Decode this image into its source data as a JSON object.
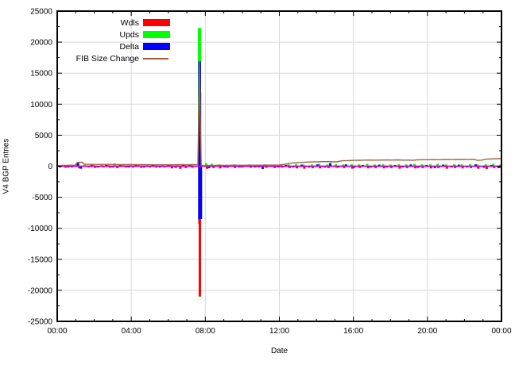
{
  "chart_data": {
    "type": "bar",
    "subtype": "gnuplot-impulses-with-line",
    "title": "",
    "xlabel": "Date",
    "ylabel": "V4 BGP Entries",
    "ylim": [
      -25000,
      25000
    ],
    "y_tick_step": 5000,
    "y_minor_step": 2500,
    "x_range_hours": [
      0,
      24
    ],
    "x_major_step_hours": 4,
    "x_minor_step_hours": 1,
    "x_tick_labels": [
      "00:00",
      "04:00",
      "08:00",
      "12:00",
      "16:00",
      "20:00",
      "00:00"
    ],
    "grid": true,
    "grid_color": "#d8d8d8",
    "border_color": "#000000",
    "background_color": "#ffffff",
    "zero_line": {
      "value": 0,
      "color": "#cc00cc"
    },
    "legend_position": "top-left-inside",
    "legend": [
      {
        "label": "Wdls",
        "color": "#ff0000",
        "swatch": "box"
      },
      {
        "label": "Upds",
        "color": "#00ff00",
        "swatch": "box"
      },
      {
        "label": "Delta",
        "color": "#0000ff",
        "swatch": "box"
      },
      {
        "label": "FIB Size Change",
        "color": "#a5603c",
        "swatch": "line"
      }
    ],
    "series": [
      {
        "name": "Wdls",
        "style": "impulse",
        "color": "#ff0000",
        "points": [
          [
            0.15,
            -150
          ],
          [
            0.45,
            -250
          ],
          [
            0.8,
            -200
          ],
          [
            1.2,
            -350
          ],
          [
            1.7,
            -200
          ],
          [
            2.05,
            -280
          ],
          [
            2.5,
            -200
          ],
          [
            2.85,
            -250
          ],
          [
            3.25,
            -300
          ],
          [
            3.7,
            -200
          ],
          [
            4.1,
            -220
          ],
          [
            4.55,
            -260
          ],
          [
            5.0,
            -200
          ],
          [
            5.35,
            -230
          ],
          [
            5.8,
            -200
          ],
          [
            6.2,
            -350
          ],
          [
            6.65,
            -420
          ],
          [
            6.95,
            -300
          ],
          [
            7.3,
            -250
          ],
          [
            7.67,
            -9300,
            2.5
          ],
          [
            7.705,
            -21000,
            3
          ],
          [
            8.1,
            -420
          ],
          [
            8.45,
            -300
          ],
          [
            8.8,
            -350
          ],
          [
            9.2,
            -250
          ],
          [
            9.6,
            -300
          ],
          [
            10.0,
            -220
          ],
          [
            10.45,
            -250
          ],
          [
            10.9,
            -200
          ],
          [
            11.3,
            -260
          ],
          [
            11.75,
            -300
          ],
          [
            12.15,
            -250
          ],
          [
            12.55,
            -300
          ],
          [
            12.95,
            -350
          ],
          [
            13.35,
            -400
          ],
          [
            13.8,
            -300
          ],
          [
            14.2,
            -350
          ],
          [
            14.65,
            -300
          ],
          [
            15.1,
            -250
          ],
          [
            15.5,
            -300
          ],
          [
            15.95,
            -400
          ],
          [
            16.35,
            -300
          ],
          [
            16.8,
            -350
          ],
          [
            17.2,
            -300
          ],
          [
            17.65,
            -350
          ],
          [
            18.05,
            -300
          ],
          [
            18.5,
            -400
          ],
          [
            18.9,
            -300
          ],
          [
            19.35,
            -350
          ],
          [
            19.75,
            -300
          ],
          [
            20.2,
            -350
          ],
          [
            20.6,
            -300
          ],
          [
            21.05,
            -400
          ],
          [
            21.5,
            -300
          ],
          [
            21.9,
            -350
          ],
          [
            22.35,
            -300
          ],
          [
            22.75,
            -400
          ],
          [
            23.2,
            -450
          ],
          [
            23.6,
            -300
          ],
          [
            23.9,
            -250
          ]
        ]
      },
      {
        "name": "Upds",
        "style": "impulse",
        "color": "#00ff00",
        "points": [
          [
            0.25,
            200
          ],
          [
            0.7,
            250
          ],
          [
            1.05,
            300
          ],
          [
            1.5,
            250
          ],
          [
            1.95,
            200
          ],
          [
            2.4,
            250
          ],
          [
            2.75,
            200
          ],
          [
            3.1,
            450
          ],
          [
            3.55,
            250
          ],
          [
            3.95,
            200
          ],
          [
            4.4,
            250
          ],
          [
            4.85,
            200
          ],
          [
            5.25,
            250
          ],
          [
            5.7,
            300
          ],
          [
            6.1,
            250
          ],
          [
            6.5,
            200
          ],
          [
            6.9,
            250
          ],
          [
            7.25,
            300
          ],
          [
            7.685,
            22300,
            4
          ],
          [
            7.735,
            11900,
            2.5
          ],
          [
            8.05,
            500
          ],
          [
            8.35,
            400
          ],
          [
            8.75,
            300
          ],
          [
            9.15,
            250
          ],
          [
            9.55,
            300
          ],
          [
            9.95,
            250
          ],
          [
            10.4,
            300
          ],
          [
            10.85,
            250
          ],
          [
            11.25,
            300
          ],
          [
            11.7,
            250
          ],
          [
            12.1,
            250
          ],
          [
            12.5,
            300
          ],
          [
            12.9,
            350
          ],
          [
            13.3,
            300
          ],
          [
            13.75,
            300
          ],
          [
            14.15,
            400
          ],
          [
            14.6,
            300
          ],
          [
            15.05,
            350
          ],
          [
            15.45,
            300
          ],
          [
            15.9,
            350
          ],
          [
            16.3,
            300
          ],
          [
            16.75,
            400
          ],
          [
            17.15,
            300
          ],
          [
            17.6,
            350
          ],
          [
            18.0,
            300
          ],
          [
            18.45,
            350
          ],
          [
            18.85,
            300
          ],
          [
            19.3,
            400
          ],
          [
            19.7,
            300
          ],
          [
            20.15,
            350
          ],
          [
            20.55,
            400
          ],
          [
            21.0,
            300
          ],
          [
            21.45,
            350
          ],
          [
            21.85,
            300
          ],
          [
            22.3,
            350
          ],
          [
            22.7,
            300
          ],
          [
            23.15,
            350
          ],
          [
            23.55,
            400
          ],
          [
            23.95,
            300
          ]
        ]
      },
      {
        "name": "Delta",
        "style": "impulse",
        "color": "#0000ff",
        "points": [
          [
            0.35,
            150
          ],
          [
            0.6,
            -150
          ],
          [
            1.12,
            600,
            3
          ],
          [
            1.28,
            -400
          ],
          [
            1.85,
            150
          ],
          [
            2.2,
            -200
          ],
          [
            2.65,
            150
          ],
          [
            3.0,
            -150
          ],
          [
            3.4,
            200
          ],
          [
            3.85,
            -200
          ],
          [
            4.25,
            200
          ],
          [
            4.7,
            -150
          ],
          [
            5.15,
            200
          ],
          [
            5.55,
            -200
          ],
          [
            6.0,
            250
          ],
          [
            6.4,
            -250
          ],
          [
            6.8,
            150
          ],
          [
            7.15,
            200
          ],
          [
            7.695,
            16900,
            3.5
          ],
          [
            7.72,
            -8500,
            5
          ],
          [
            8.2,
            -300
          ],
          [
            8.6,
            200
          ],
          [
            9.05,
            -200
          ],
          [
            9.45,
            250
          ],
          [
            9.85,
            -200
          ],
          [
            10.3,
            200
          ],
          [
            10.7,
            -200
          ],
          [
            11.1,
            -430
          ],
          [
            11.55,
            200
          ],
          [
            11.95,
            -200
          ],
          [
            12.35,
            200
          ],
          [
            12.75,
            -200
          ],
          [
            13.2,
            250
          ],
          [
            13.6,
            -200
          ],
          [
            14.05,
            300
          ],
          [
            14.45,
            -200
          ],
          [
            14.75,
            500
          ],
          [
            15.2,
            -200
          ],
          [
            15.6,
            300
          ],
          [
            16.05,
            -250
          ],
          [
            16.5,
            200
          ],
          [
            16.95,
            -200
          ],
          [
            17.4,
            250
          ],
          [
            17.8,
            -200
          ],
          [
            18.25,
            200
          ],
          [
            18.65,
            -200
          ],
          [
            19.1,
            300
          ],
          [
            19.5,
            -250
          ],
          [
            19.95,
            200
          ],
          [
            20.4,
            -300
          ],
          [
            20.85,
            250
          ],
          [
            21.3,
            -200
          ],
          [
            21.7,
            250
          ],
          [
            22.15,
            -200
          ],
          [
            22.6,
            300
          ],
          [
            23.05,
            -250
          ],
          [
            23.45,
            200
          ],
          [
            23.85,
            -300
          ]
        ]
      },
      {
        "name": "FIB Size Change",
        "style": "line",
        "color": "#a5603c",
        "points": [
          [
            0,
            100
          ],
          [
            0.5,
            130
          ],
          [
            0.95,
            160
          ],
          [
            1.1,
            620
          ],
          [
            1.35,
            640
          ],
          [
            1.45,
            330
          ],
          [
            1.8,
            300
          ],
          [
            2.2,
            290
          ],
          [
            2.6,
            300
          ],
          [
            3.0,
            280
          ],
          [
            3.4,
            270
          ],
          [
            3.8,
            255
          ],
          [
            4.2,
            260
          ],
          [
            4.6,
            250
          ],
          [
            5.0,
            245
          ],
          [
            5.4,
            235
          ],
          [
            5.8,
            240
          ],
          [
            6.2,
            230
          ],
          [
            6.6,
            250
          ],
          [
            7.0,
            240
          ],
          [
            7.3,
            250
          ],
          [
            7.6,
            255
          ],
          [
            7.69,
            16900
          ],
          [
            7.73,
            7900
          ],
          [
            7.78,
            120
          ],
          [
            8.0,
            110
          ],
          [
            8.4,
            130
          ],
          [
            8.8,
            150
          ],
          [
            9.2,
            140
          ],
          [
            9.6,
            160
          ],
          [
            10.0,
            155
          ],
          [
            10.4,
            165
          ],
          [
            10.8,
            160
          ],
          [
            11.2,
            175
          ],
          [
            11.6,
            185
          ],
          [
            12.0,
            210
          ],
          [
            12.3,
            330
          ],
          [
            12.6,
            480
          ],
          [
            12.9,
            560
          ],
          [
            13.2,
            620
          ],
          [
            13.5,
            660
          ],
          [
            13.8,
            690
          ],
          [
            14.1,
            710
          ],
          [
            14.4,
            740
          ],
          [
            14.7,
            760
          ],
          [
            14.9,
            700
          ],
          [
            15.1,
            720
          ],
          [
            15.4,
            880
          ],
          [
            15.7,
            910
          ],
          [
            16.0,
            940
          ],
          [
            16.3,
            960
          ],
          [
            16.6,
            980
          ],
          [
            16.9,
            1000
          ],
          [
            17.2,
            985
          ],
          [
            17.5,
            995
          ],
          [
            17.8,
            1010
          ],
          [
            18.1,
            1000
          ],
          [
            18.4,
            1020
          ],
          [
            18.7,
            990
          ],
          [
            19.0,
            1000
          ],
          [
            19.2,
            940
          ],
          [
            19.45,
            1040
          ],
          [
            19.8,
            1050
          ],
          [
            20.1,
            1060
          ],
          [
            20.4,
            1075
          ],
          [
            20.7,
            1050
          ],
          [
            21.0,
            1090
          ],
          [
            21.3,
            1070
          ],
          [
            21.6,
            1100
          ],
          [
            21.9,
            1085
          ],
          [
            22.2,
            1110
          ],
          [
            22.5,
            1120
          ],
          [
            22.7,
            940
          ],
          [
            22.95,
            990
          ],
          [
            23.15,
            1140
          ],
          [
            23.5,
            1190
          ],
          [
            23.8,
            1220
          ],
          [
            24.0,
            1250
          ]
        ]
      }
    ]
  }
}
